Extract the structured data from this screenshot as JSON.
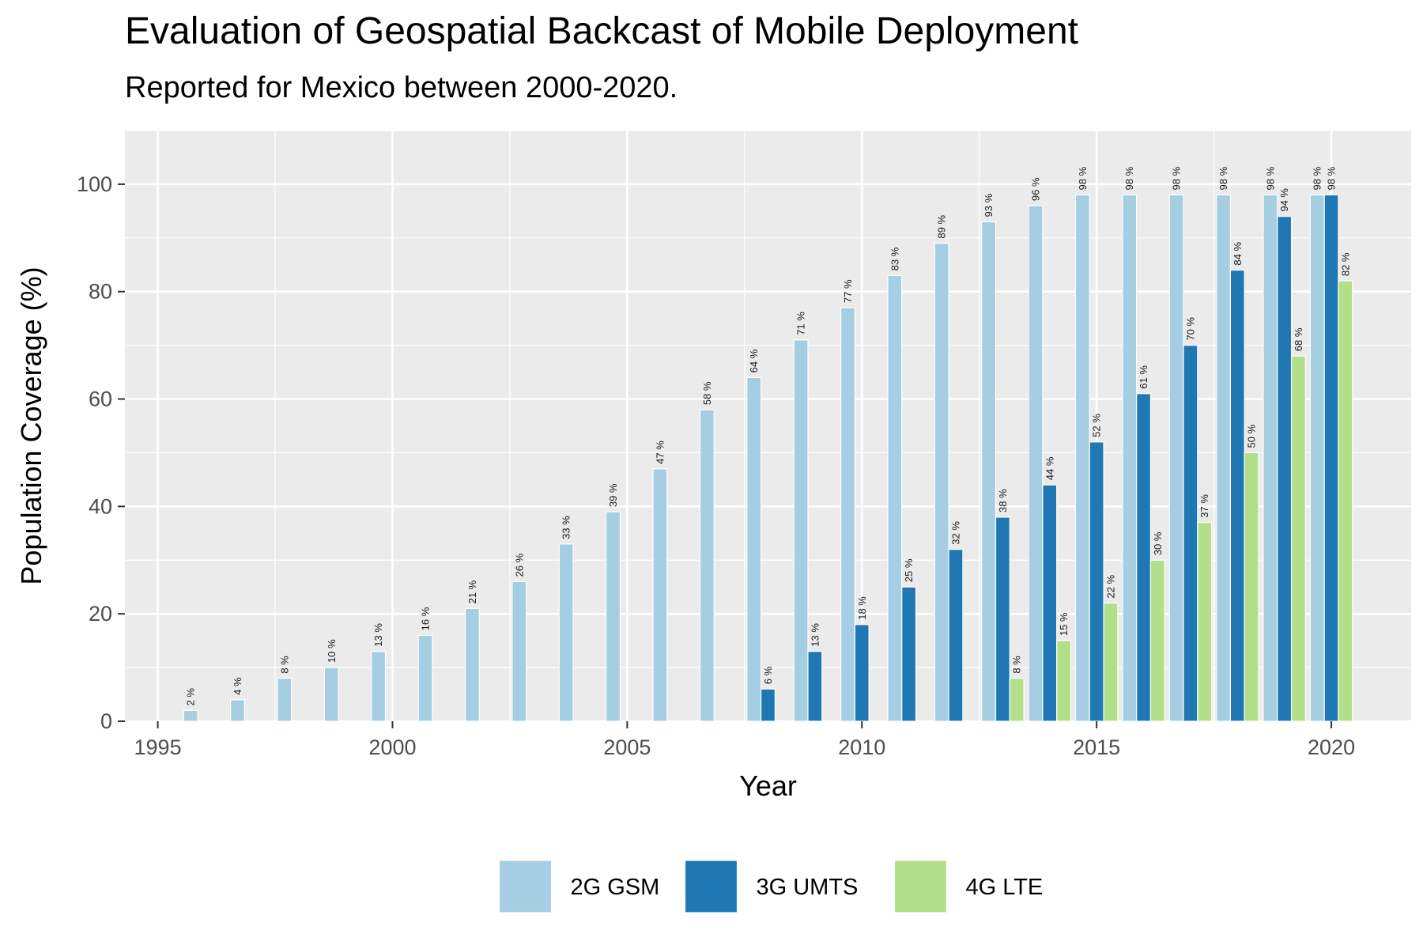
{
  "chart_data": {
    "type": "bar",
    "title": "Evaluation of Geospatial Backcast of Mobile Deployment",
    "subtitle": "Reported for Mexico between 2000-2020.",
    "xlabel": "Year",
    "ylabel": "Population Coverage (%)",
    "xlim": [
      1994.3,
      2021.7
    ],
    "ylim": [
      0,
      110
    ],
    "x_ticks": [
      1995,
      2000,
      2005,
      2010,
      2015,
      2020
    ],
    "y_ticks": [
      0,
      20,
      40,
      60,
      80,
      100
    ],
    "grid": true,
    "legend_position": "bottom",
    "label_suffix": " %",
    "series": [
      {
        "name": "2G GSM",
        "color": "#a6cee3",
        "points": [
          [
            1996,
            2
          ],
          [
            1997,
            4
          ],
          [
            1998,
            8
          ],
          [
            1999,
            10
          ],
          [
            2000,
            13
          ],
          [
            2001,
            16
          ],
          [
            2002,
            21
          ],
          [
            2003,
            26
          ],
          [
            2004,
            33
          ],
          [
            2005,
            39
          ],
          [
            2006,
            47
          ],
          [
            2007,
            58
          ],
          [
            2008,
            64
          ],
          [
            2009,
            71
          ],
          [
            2010,
            77
          ],
          [
            2011,
            83
          ],
          [
            2012,
            89
          ],
          [
            2013,
            93
          ],
          [
            2014,
            96
          ],
          [
            2015,
            98
          ],
          [
            2016,
            98
          ],
          [
            2017,
            98
          ],
          [
            2018,
            98
          ],
          [
            2019,
            98
          ],
          [
            2020,
            98
          ]
        ]
      },
      {
        "name": "3G UMTS",
        "color": "#1f78b4",
        "points": [
          [
            2008,
            6
          ],
          [
            2009,
            13
          ],
          [
            2010,
            18
          ],
          [
            2011,
            25
          ],
          [
            2012,
            32
          ],
          [
            2013,
            38
          ],
          [
            2014,
            44
          ],
          [
            2015,
            52
          ],
          [
            2016,
            61
          ],
          [
            2017,
            70
          ],
          [
            2018,
            84
          ],
          [
            2019,
            94
          ],
          [
            2020,
            98
          ]
        ]
      },
      {
        "name": "4G LTE",
        "color": "#b2df8a",
        "points": [
          [
            2013,
            8
          ],
          [
            2014,
            15
          ],
          [
            2015,
            22
          ],
          [
            2016,
            30
          ],
          [
            2017,
            37
          ],
          [
            2018,
            50
          ],
          [
            2019,
            68
          ],
          [
            2020,
            82
          ]
        ]
      }
    ]
  },
  "colors": {
    "panel_background": "#ebebeb",
    "grid": "#ffffff",
    "axis_text": "#4d4d4d"
  }
}
